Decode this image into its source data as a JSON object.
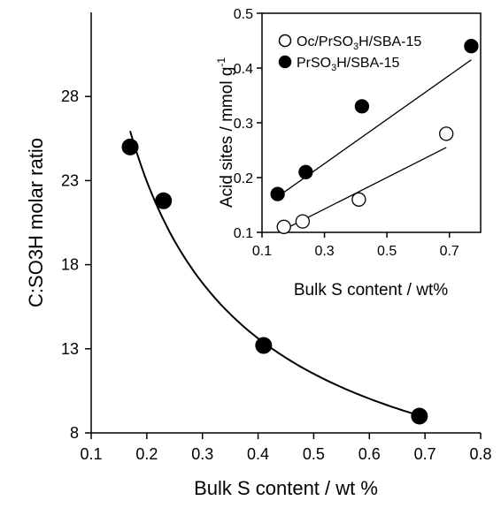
{
  "chart_data": [
    {
      "type": "scatter",
      "xlabel": "Bulk S content / wt %",
      "ylabel": "C:SO3H molar ratio",
      "xlim": [
        0.1,
        0.8
      ],
      "ylim": [
        8,
        33
      ],
      "xticks": [
        "0.1",
        "0.2",
        "0.3",
        "0.4",
        "0.5",
        "0.6",
        "0.7",
        "0.8"
      ],
      "yticks": [
        "8",
        "13",
        "18",
        "23",
        "28"
      ],
      "grid": false,
      "series": [
        {
          "marker": "filled-circle",
          "color": "#000000",
          "x": [
            0.17,
            0.23,
            0.41,
            0.69
          ],
          "y": [
            25.0,
            21.8,
            13.2,
            9.0
          ]
        }
      ],
      "trendline": {
        "type": "curve",
        "color": "#000000",
        "x_range": [
          0.17,
          0.69
        ]
      }
    },
    {
      "type": "scatter",
      "xlabel": "Bulk S content / wt%",
      "ylabel_main": "Acid sites / mmol g",
      "ylabel_sup": "-1",
      "xlim": [
        0.1,
        0.8
      ],
      "ylim": [
        0.1,
        0.5
      ],
      "xticks": [
        "0.1",
        "0.3",
        "0.5",
        "0.7"
      ],
      "yticks": [
        "0.1",
        "0.2",
        "0.3",
        "0.4",
        "0.5"
      ],
      "grid": false,
      "legend_position": "top-left",
      "series": [
        {
          "legend_parts": [
            "Oc/PrSO",
            "3",
            "H/SBA-15"
          ],
          "marker": "open-circle",
          "color": "#000000",
          "x": [
            0.17,
            0.23,
            0.41,
            0.69
          ],
          "y": [
            0.11,
            0.12,
            0.16,
            0.28
          ],
          "fit": {
            "x": [
              0.17,
              0.69
            ],
            "y": [
              0.105,
              0.255
            ]
          }
        },
        {
          "legend_parts": [
            "PrSO",
            "3",
            "H/SBA-15"
          ],
          "marker": "filled-circle",
          "color": "#000000",
          "x": [
            0.15,
            0.24,
            0.42,
            0.77
          ],
          "y": [
            0.17,
            0.21,
            0.33,
            0.44
          ],
          "fit": {
            "x": [
              0.15,
              0.77
            ],
            "y": [
              0.165,
              0.415
            ]
          }
        }
      ]
    }
  ]
}
